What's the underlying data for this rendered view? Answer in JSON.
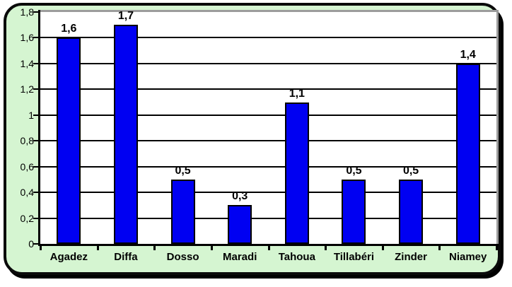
{
  "chart_data": {
    "type": "bar",
    "title": "",
    "xlabel": "",
    "ylabel": "",
    "categories": [
      "Agadez",
      "Diffa",
      "Dosso",
      "Maradi",
      "Tahoua",
      "Tillabéri",
      "Zinder",
      "Niamey"
    ],
    "values": [
      1.6,
      1.7,
      0.5,
      0.3,
      1.1,
      0.5,
      0.5,
      1.4
    ],
    "value_labels": [
      "1,6",
      "1,7",
      "0,5",
      "0,3",
      "1,1",
      "0,5",
      "0,5",
      "1,4"
    ],
    "ylim": [
      0,
      1.8
    ],
    "ytick_step": 0.2,
    "ytick_labels": [
      "0",
      "0,2",
      "0,4",
      "0,6",
      "0,8",
      "1",
      "1,2",
      "1,4",
      "1,6",
      "1,8"
    ],
    "decimal_separator": ",",
    "grid": true,
    "legend": "none"
  },
  "style": {
    "bar_fill": "#0000f2",
    "bar_border": "#000000",
    "frame_fill": "#d5f5d1",
    "frame_border": "#0a0a0a",
    "plot_fill": "#ffffff",
    "plot_border": "#9c9c9c",
    "gridline": "#000000",
    "axis": "#000000",
    "text": "#000000"
  }
}
